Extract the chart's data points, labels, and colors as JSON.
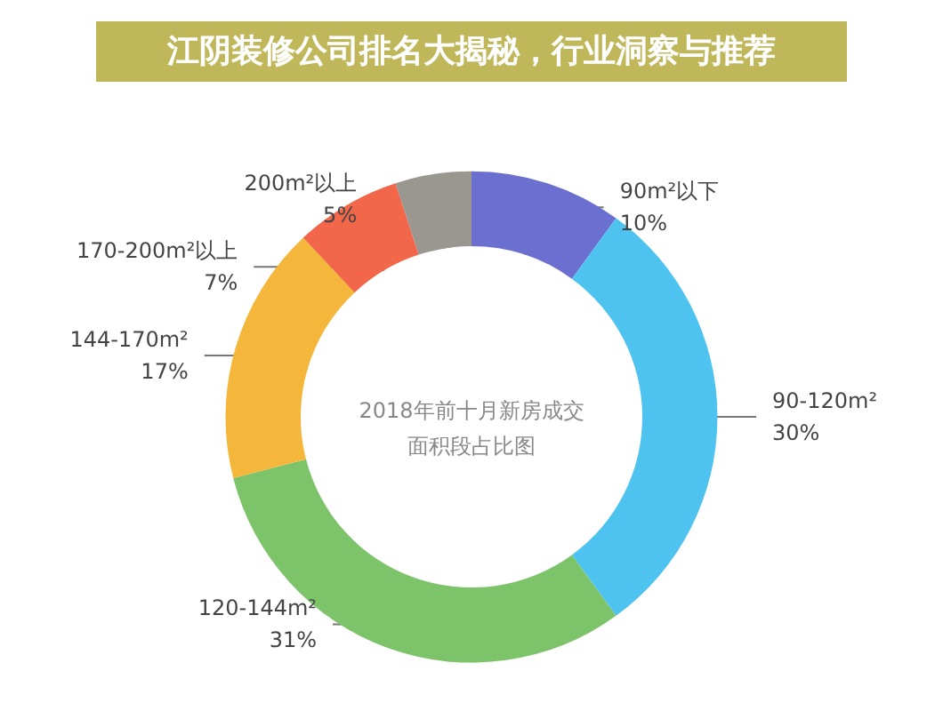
{
  "chart_data": {
    "type": "donut",
    "title": "江阴装修公司排名大揭秘，行业洞察与推荐",
    "subtitle": "2018年前十月新房成交面积段占比图",
    "categories": [
      "90m²以下",
      "90-120m²",
      "120-144m²",
      "144-170m²",
      "170-200m²以上",
      "200m²以上"
    ],
    "values": [
      10,
      30,
      31,
      17,
      7,
      5
    ],
    "value_labels": [
      "10%",
      "30%",
      "31%",
      "17%",
      "7%",
      "5%"
    ],
    "colors": [
      "#6b6fcf",
      "#4fc3f0",
      "#7cc36a",
      "#f5b73b",
      "#f2664a",
      "#9a9690"
    ],
    "legend": false
  }
}
